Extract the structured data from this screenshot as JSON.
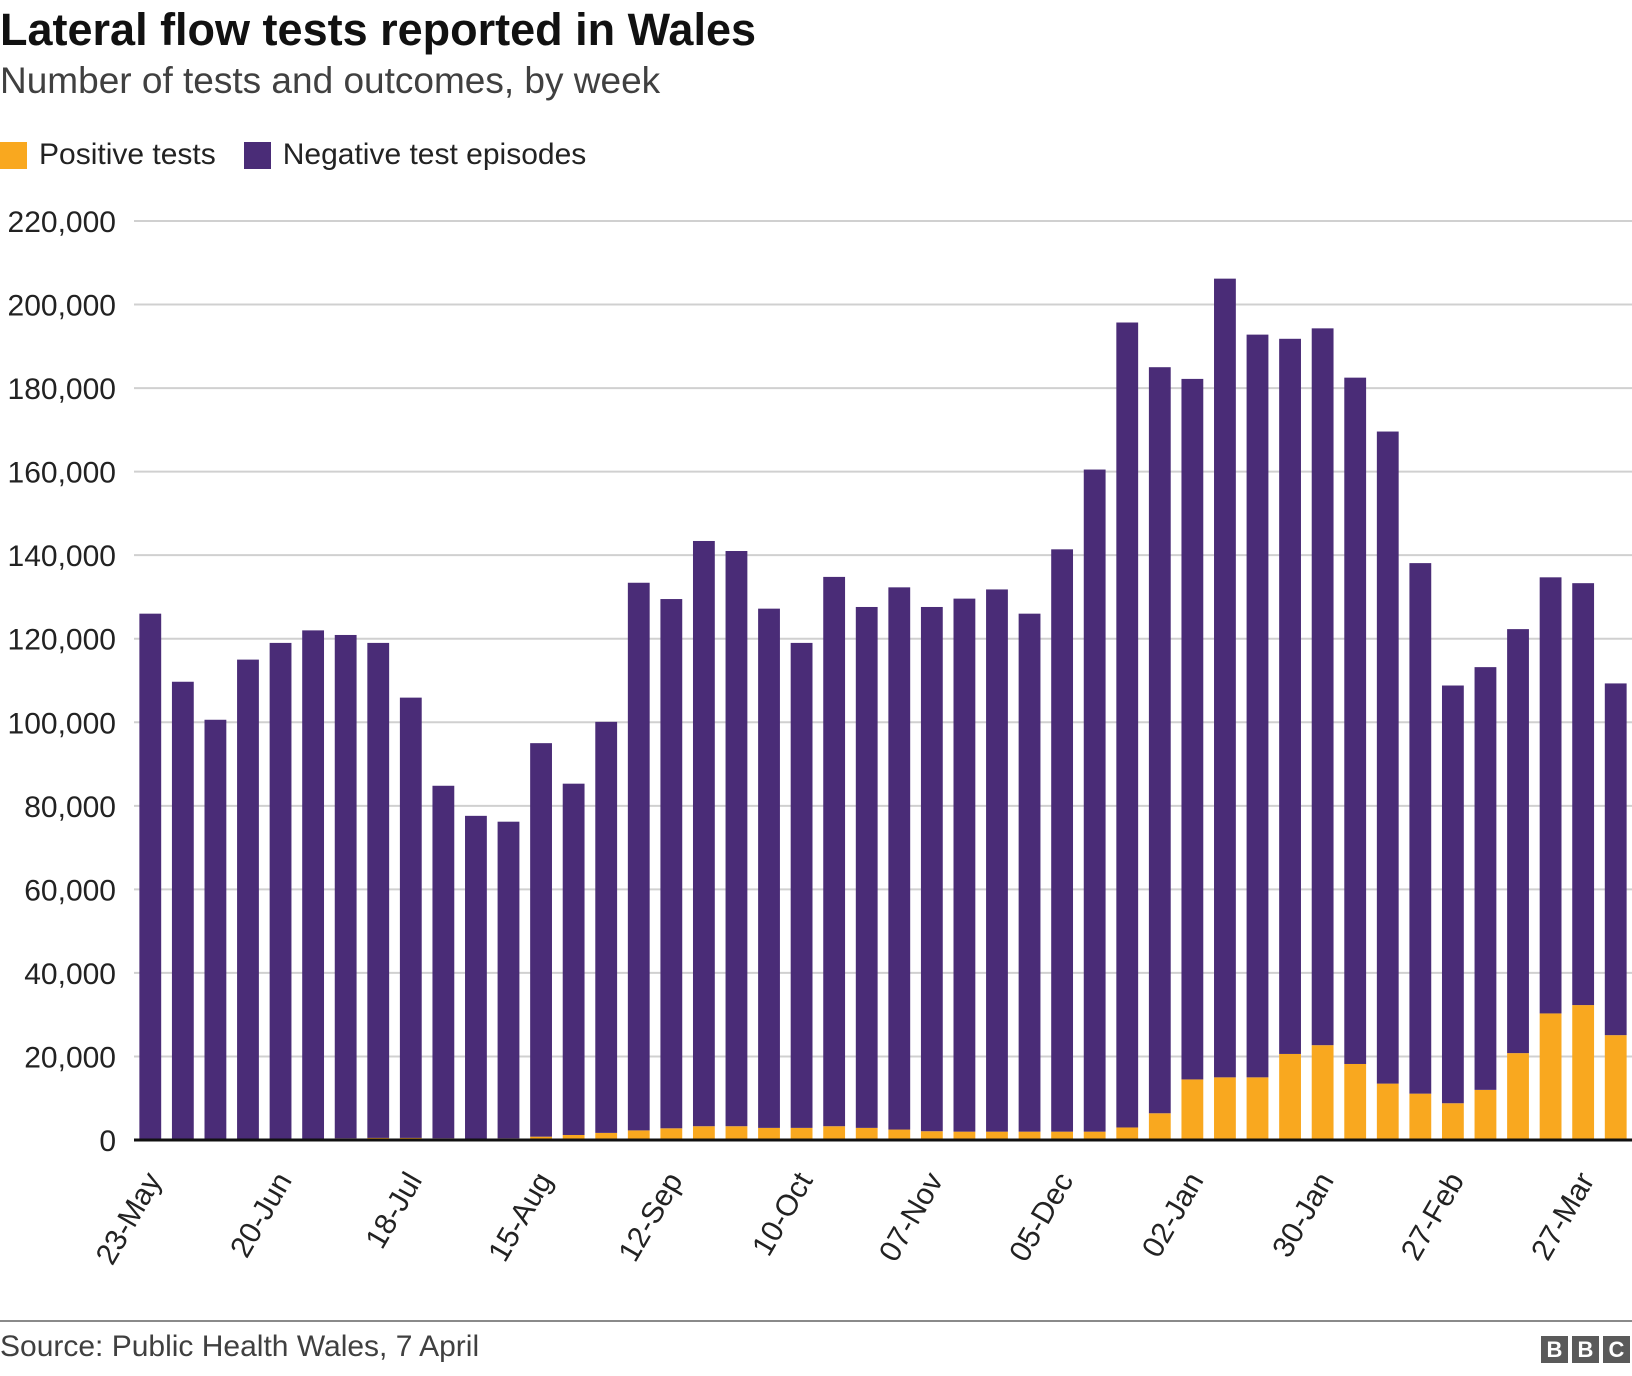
{
  "header": {
    "title": "Lateral flow tests reported in Wales",
    "subtitle": "Number of tests and outcomes, by week"
  },
  "footer": {
    "source": "Source: Public Health Wales, 7 April",
    "logo_letters": [
      "B",
      "B",
      "C"
    ]
  },
  "chart_data": {
    "type": "bar",
    "stacked": true,
    "title": "Lateral flow tests reported in Wales",
    "subtitle": "Number of tests and outcomes, by week",
    "xlabel": "",
    "ylabel": "",
    "ylim": [
      0,
      220000
    ],
    "yticks": [
      0,
      20000,
      40000,
      60000,
      80000,
      100000,
      120000,
      140000,
      160000,
      180000,
      200000,
      220000
    ],
    "ytick_labels": [
      "0",
      "20,000",
      "40,000",
      "60,000",
      "80,000",
      "100,000",
      "120,000",
      "140,000",
      "160,000",
      "180,000",
      "200,000",
      "220,000"
    ],
    "grid": true,
    "legend_position": "top-left",
    "categories": [
      "23-May",
      "30-May",
      "06-Jun",
      "13-Jun",
      "20-Jun",
      "27-Jun",
      "04-Jul",
      "11-Jul",
      "18-Jul",
      "25-Jul",
      "01-Aug",
      "08-Aug",
      "15-Aug",
      "22-Aug",
      "29-Aug",
      "05-Sep",
      "12-Sep",
      "19-Sep",
      "26-Sep",
      "03-Oct",
      "10-Oct",
      "17-Oct",
      "24-Oct",
      "31-Oct",
      "07-Nov",
      "14-Nov",
      "21-Nov",
      "28-Nov",
      "05-Dec",
      "12-Dec",
      "19-Dec",
      "26-Dec",
      "02-Jan",
      "09-Jan",
      "16-Jan",
      "23-Jan",
      "30-Jan",
      "06-Feb",
      "13-Feb",
      "20-Feb",
      "27-Feb",
      "06-Mar",
      "13-Mar",
      "20-Mar",
      "27-Mar",
      "03-Apr"
    ],
    "tick_labels": [
      "23-May",
      "",
      "",
      "",
      "20-Jun",
      "",
      "",
      "",
      "18-Jul",
      "",
      "",
      "",
      "15-Aug",
      "",
      "",
      "",
      "12-Sep",
      "",
      "",
      "",
      "10-Oct",
      "",
      "",
      "",
      "07-Nov",
      "",
      "",
      "",
      "05-Dec",
      "",
      "",
      "",
      "02-Jan",
      "",
      "",
      "",
      "30-Jan",
      "",
      "",
      "",
      "27-Feb",
      "",
      "",
      "",
      "27-Mar",
      ""
    ],
    "series": [
      {
        "name": "Positive tests",
        "color": "#f9a81f",
        "values": [
          200,
          150,
          150,
          150,
          200,
          300,
          400,
          500,
          500,
          400,
          300,
          400,
          800,
          1200,
          1700,
          2300,
          2800,
          3300,
          3300,
          2900,
          2900,
          3300,
          2900,
          2500,
          2100,
          2000,
          2000,
          2000,
          2000,
          2000,
          3000,
          6400,
          14500,
          15000,
          15000,
          20600,
          22700,
          18200,
          13500,
          11100,
          8800,
          12000,
          20800,
          30300,
          32300,
          25100
        ]
      },
      {
        "name": "Negative test episodes",
        "color": "#4a2c77",
        "values": [
          125800,
          109550,
          100450,
          114850,
          118800,
          121700,
          120500,
          118500,
          105400,
          84400,
          77300,
          75800,
          94200,
          84100,
          98400,
          131100,
          126700,
          140100,
          137700,
          124300,
          116100,
          131500,
          124700,
          129800,
          125500,
          127600,
          129800,
          124000,
          139400,
          158500,
          192700,
          178600,
          167700,
          191200,
          177800,
          171200,
          171600,
          164300,
          156100,
          127000,
          100000,
          101200,
          101500,
          104400,
          101000,
          84200
        ]
      }
    ]
  }
}
